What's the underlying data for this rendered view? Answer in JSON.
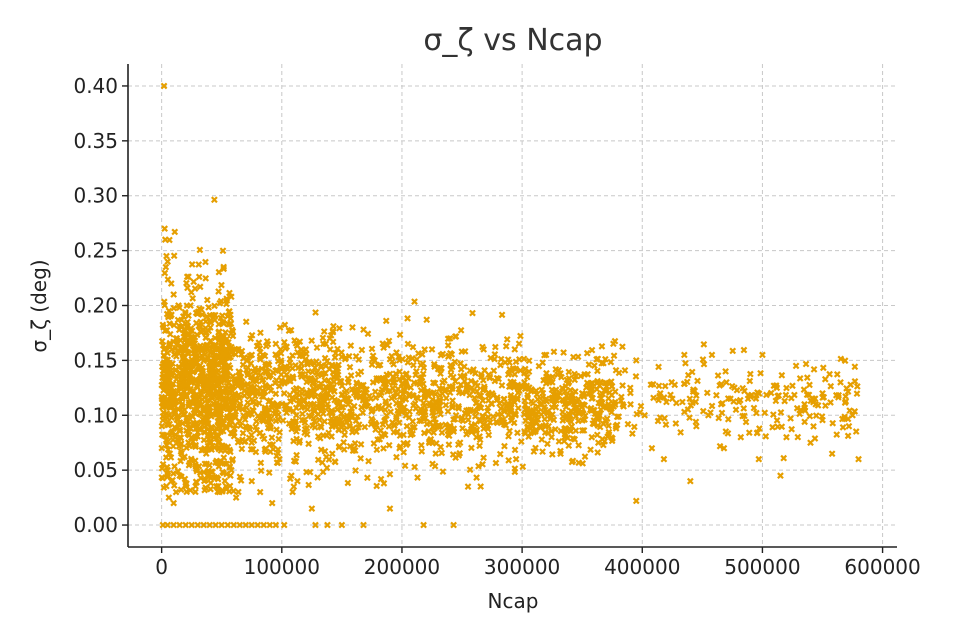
{
  "chart_data": {
    "type": "scatter",
    "title": "σ_ζ vs Ncap",
    "xlabel": "Ncap",
    "ylabel": "σ_ζ (deg)",
    "xlim": [
      -28000,
      612000
    ],
    "ylim": [
      -0.02,
      0.42
    ],
    "x_ticks": [
      0,
      100000,
      200000,
      300000,
      400000,
      500000,
      600000
    ],
    "x_tick_labels": [
      "0",
      "100000",
      "200000",
      "300000",
      "400000",
      "500000",
      "600000"
    ],
    "y_ticks": [
      0.0,
      0.05,
      0.1,
      0.15,
      0.2,
      0.25,
      0.3,
      0.35,
      0.4
    ],
    "y_tick_labels": [
      "0.00",
      "0.05",
      "0.10",
      "0.15",
      "0.20",
      "0.25",
      "0.30",
      "0.35",
      "0.40"
    ],
    "grid": true,
    "marker": "x",
    "color": "#E69F00",
    "points": [
      [
        2000,
        0.4
      ],
      [
        2500,
        0.27
      ],
      [
        3000,
        0.26
      ],
      [
        4000,
        0.245
      ],
      [
        5000,
        0.24
      ],
      [
        3500,
        0.235
      ],
      [
        1000,
        0.0
      ],
      [
        5000,
        0.0
      ],
      [
        10000,
        0.0
      ],
      [
        15000,
        0.0
      ],
      [
        20000,
        0.0
      ],
      [
        25000,
        0.0
      ],
      [
        30000,
        0.0
      ],
      [
        35000,
        0.0
      ],
      [
        40000,
        0.0
      ],
      [
        45000,
        0.0
      ],
      [
        50000,
        0.0
      ],
      [
        55000,
        0.0
      ],
      [
        60000,
        0.0
      ],
      [
        65000,
        0.0
      ],
      [
        70000,
        0.0
      ],
      [
        75000,
        0.0
      ],
      [
        80000,
        0.0
      ],
      [
        85000,
        0.0
      ],
      [
        90000,
        0.0
      ],
      [
        95000,
        0.0
      ],
      [
        102000,
        0.0
      ],
      [
        128000,
        0.0
      ],
      [
        138000,
        0.0
      ],
      [
        150000,
        0.0
      ],
      [
        168000,
        0.0
      ],
      [
        218000,
        0.0
      ],
      [
        243000,
        0.0
      ],
      [
        5000,
        0.05
      ],
      [
        8000,
        0.04
      ],
      [
        12000,
        0.03
      ],
      [
        6000,
        0.025
      ],
      [
        10000,
        0.02
      ],
      [
        15000,
        0.045
      ],
      [
        20000,
        0.035
      ],
      [
        28000,
        0.055
      ],
      [
        38000,
        0.045
      ],
      [
        48000,
        0.03
      ],
      [
        58000,
        0.05
      ],
      [
        62000,
        0.025
      ],
      [
        75000,
        0.04
      ],
      [
        82000,
        0.03
      ],
      [
        92000,
        0.02
      ],
      [
        98000,
        0.06
      ],
      [
        108000,
        0.045
      ],
      [
        110000,
        0.035
      ],
      [
        113000,
        0.04
      ],
      [
        125000,
        0.015
      ],
      [
        190000,
        0.015
      ],
      [
        255000,
        0.035
      ],
      [
        395000,
        0.022
      ],
      [
        8000,
        0.22
      ],
      [
        10000,
        0.21
      ],
      [
        14000,
        0.2
      ],
      [
        18000,
        0.19
      ],
      [
        24000,
        0.2
      ],
      [
        32000,
        0.18
      ],
      [
        38000,
        0.205
      ],
      [
        48000,
        0.17
      ],
      [
        62000,
        0.16
      ],
      [
        75000,
        0.155
      ],
      [
        95000,
        0.165
      ],
      [
        120000,
        0.16
      ],
      [
        140000,
        0.17
      ],
      [
        168000,
        0.178
      ],
      [
        205000,
        0.165
      ],
      [
        225000,
        0.16
      ],
      [
        240000,
        0.17
      ],
      [
        268000,
        0.16
      ],
      [
        320000,
        0.155
      ],
      [
        395000,
        0.15
      ],
      [
        435000,
        0.155
      ],
      [
        458000,
        0.155
      ],
      [
        500000,
        0.155
      ],
      [
        528000,
        0.145
      ],
      [
        515000,
        0.045
      ],
      [
        497000,
        0.06
      ],
      [
        482000,
        0.08
      ],
      [
        558000,
        0.065
      ],
      [
        580000,
        0.06
      ],
      [
        540000,
        0.075
      ],
      [
        440000,
        0.04
      ],
      [
        418000,
        0.06
      ],
      [
        408000,
        0.07
      ],
      [
        468000,
        0.07
      ],
      [
        520000,
        0.08
      ],
      [
        575000,
        0.1
      ],
      [
        572000,
        0.09
      ],
      [
        565000,
        0.13
      ],
      [
        550000,
        0.12
      ],
      [
        535000,
        0.11
      ],
      [
        512000,
        0.125
      ],
      [
        488000,
        0.115
      ],
      [
        470000,
        0.13
      ],
      [
        455000,
        0.1
      ],
      [
        445000,
        0.09
      ],
      [
        425000,
        0.115
      ],
      [
        415000,
        0.12
      ],
      [
        402000,
        0.1
      ],
      [
        390000,
        0.125
      ],
      [
        378000,
        0.09
      ],
      [
        372000,
        0.11
      ],
      [
        365000,
        0.13
      ],
      [
        358000,
        0.08
      ],
      [
        350000,
        0.12
      ],
      [
        340000,
        0.1
      ],
      [
        332000,
        0.065
      ],
      [
        322000,
        0.09
      ],
      [
        315000,
        0.11
      ],
      [
        302000,
        0.13
      ],
      [
        295000,
        0.06
      ],
      [
        285000,
        0.105
      ],
      [
        275000,
        0.12
      ],
      [
        262000,
        0.08
      ],
      [
        252000,
        0.135
      ],
      [
        245000,
        0.1
      ],
      [
        232000,
        0.09
      ],
      [
        222000,
        0.12
      ],
      [
        212000,
        0.14
      ],
      [
        198000,
        0.07
      ],
      [
        186000,
        0.105
      ],
      [
        176000,
        0.13
      ],
      [
        162000,
        0.085
      ],
      [
        152000,
        0.115
      ],
      [
        142000,
        0.065
      ],
      [
        132000,
        0.11
      ],
      [
        122000,
        0.14
      ],
      [
        112000,
        0.1
      ],
      [
        102000,
        0.12
      ]
    ],
    "clusters": [
      {
        "x": [
          0,
          60000
        ],
        "y_mean": 0.125,
        "y_spread": 0.045,
        "count": 900
      },
      {
        "x": [
          60000,
          150000
        ],
        "y_mean": 0.115,
        "y_spread": 0.03,
        "count": 520
      },
      {
        "x": [
          150000,
          300000
        ],
        "y_mean": 0.11,
        "y_spread": 0.028,
        "count": 620
      },
      {
        "x": [
          300000,
          380000
        ],
        "y_mean": 0.11,
        "y_spread": 0.022,
        "count": 330
      },
      {
        "x": [
          380000,
          580000
        ],
        "y_mean": 0.115,
        "y_spread": 0.02,
        "count": 200
      }
    ]
  }
}
